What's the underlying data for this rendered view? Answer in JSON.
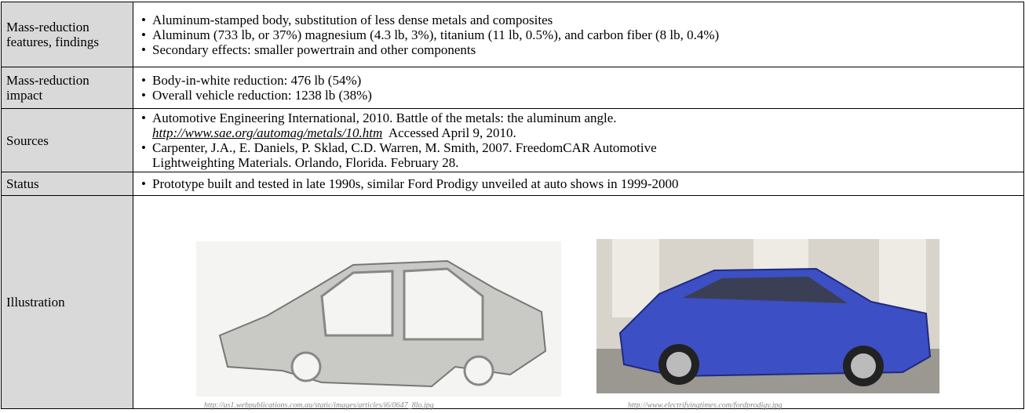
{
  "rows": [
    {
      "label": "Mass-reduction features, findings",
      "bullets": [
        "Aluminum-stamped body, substitution of less dense metals and composites",
        "Aluminum (733 lb, or 37%) magnesium (4.3 lb, 3%), titanium (11 lb, 0.5%), and carbon fiber (8 lb, 0.4%)",
        "Secondary effects: smaller powertrain and other components"
      ]
    },
    {
      "label": "Mass-reduction impact",
      "bullets": [
        "Body-in-white reduction: 476 lb (54%)",
        "Overall vehicle reduction: 1238 lb (38%)"
      ]
    },
    {
      "label": "Sources",
      "sources": [
        {
          "text": "Automotive Engineering International, 2010. Battle of the metals: the aluminum angle.",
          "link": "http://www.sae.org/automag/metals/10.htm",
          "after": "Accessed April 9, 2010."
        },
        {
          "text": "Carpenter, J.A., E. Daniels, P. Sklad, C.D. Warren, M. Smith, 2007. FreedomCAR Automotive Lightweighting Materials.  Orlando, Florida. February 28."
        }
      ]
    },
    {
      "label": "Status",
      "bullets": [
        "Prototype built and tested in late 1990s, similar Ford Prodigy unveiled at auto shows in 1999-2000"
      ]
    },
    {
      "label": "Illustration",
      "captions": [
        "http://us1.webpublications.com.au/static/images/articles/i6/0647_8lo.jpg",
        "http://www.electrifyingtimes.com/fordprodigy.jpg"
      ]
    }
  ]
}
